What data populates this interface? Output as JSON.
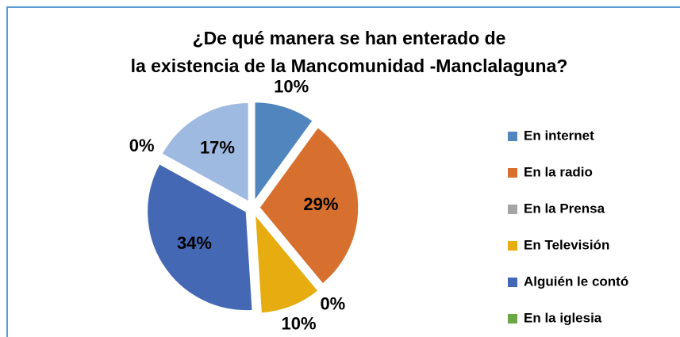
{
  "chart_data": {
    "type": "pie",
    "title": "¿De qué manera se han enterado de la existencia de la Mancomunidad -Manclalaguna?",
    "categories": [
      "En internet",
      "En la radio",
      "En la Prensa",
      "En Televisión",
      "Alguién le contó",
      "En la iglesia",
      null
    ],
    "values": [
      10,
      29,
      0,
      10,
      34,
      0,
      17
    ],
    "value_labels": [
      "10%",
      "29%",
      "0%",
      "10%",
      "34%",
      "0%",
      "17%"
    ],
    "colors": [
      "#5185bd",
      "#d7702f",
      "#a5a5a5",
      "#e6ac10",
      "#4468b3",
      "#6aa745",
      "#9fbae0"
    ],
    "legend": "right"
  }
}
